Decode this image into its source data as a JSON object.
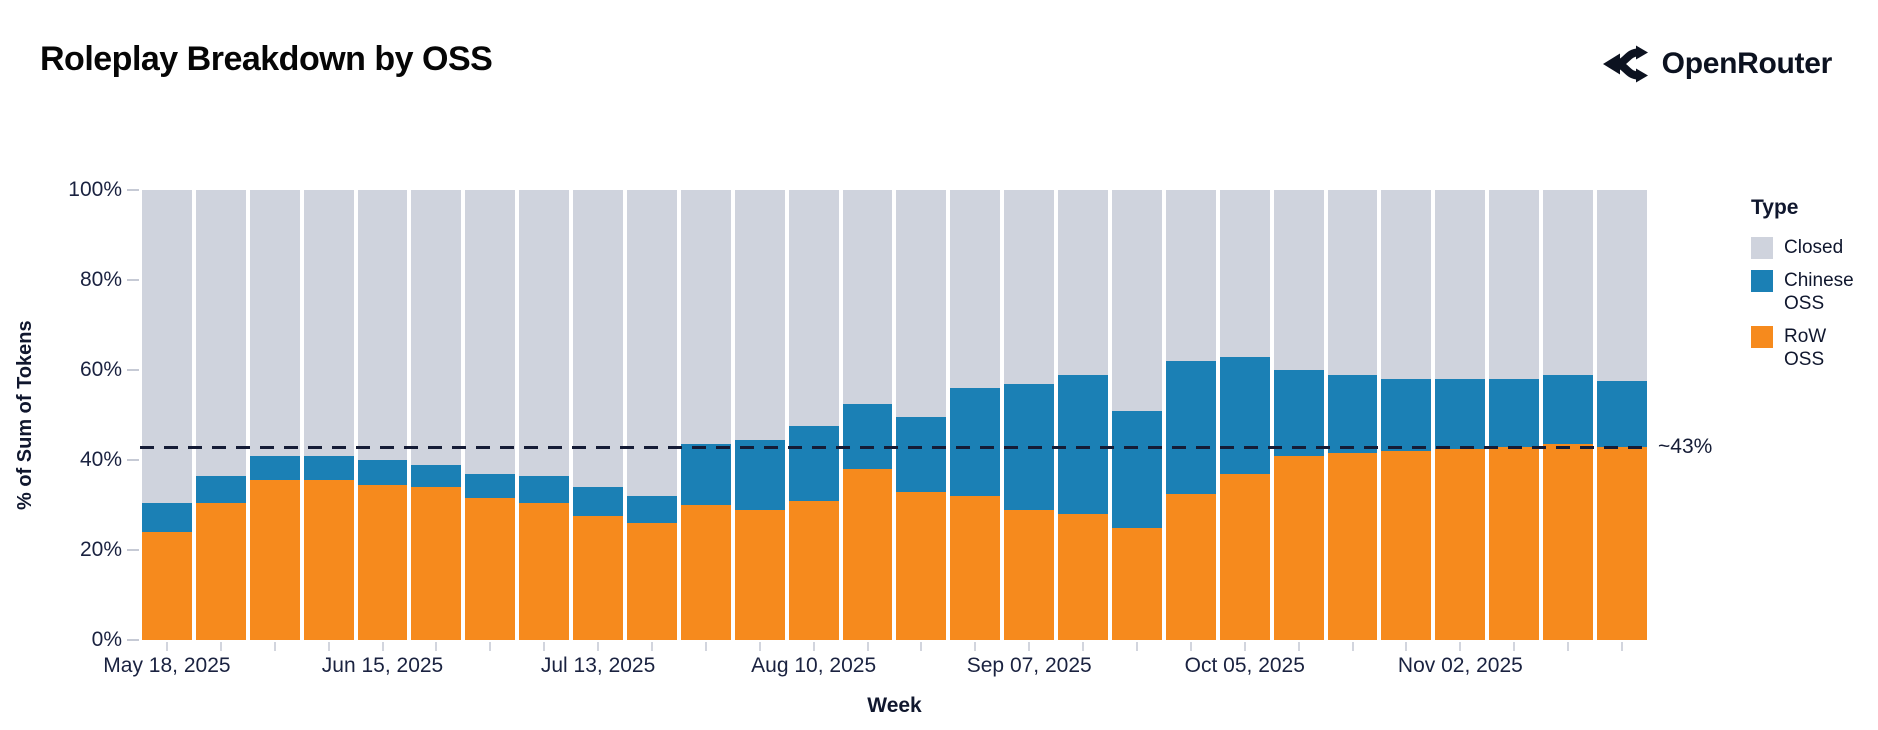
{
  "header": {
    "title": "Roleplay Breakdown by OSS",
    "brand": "OpenRouter"
  },
  "chart_data": {
    "type": "bar",
    "stacked": true,
    "title": "Roleplay Breakdown by OSS",
    "xlabel": "Week",
    "ylabel": "% of Sum of Tokens",
    "ylim": [
      0,
      100
    ],
    "grid": false,
    "y_ticks": [
      {
        "value": 0,
        "label": "0%"
      },
      {
        "value": 20,
        "label": "20%"
      },
      {
        "value": 40,
        "label": "40%"
      },
      {
        "value": 60,
        "label": "60%"
      },
      {
        "value": 80,
        "label": "80%"
      },
      {
        "value": 100,
        "label": "100%"
      }
    ],
    "categories": [
      "May 18, 2025",
      "May 25, 2025",
      "Jun 01, 2025",
      "Jun 08, 2025",
      "Jun 15, 2025",
      "Jun 22, 2025",
      "Jun 29, 2025",
      "Jul 06, 2025",
      "Jul 13, 2025",
      "Jul 20, 2025",
      "Jul 27, 2025",
      "Aug 03, 2025",
      "Aug 10, 2025",
      "Aug 17, 2025",
      "Aug 24, 2025",
      "Aug 31, 2025",
      "Sep 07, 2025",
      "Sep 14, 2025",
      "Sep 21, 2025",
      "Sep 28, 2025",
      "Oct 05, 2025",
      "Oct 12, 2025",
      "Oct 19, 2025",
      "Oct 26, 2025",
      "Nov 02, 2025",
      "Nov 09, 2025",
      "Nov 16, 2025",
      "Nov 23, 2025"
    ],
    "x_ticks": [
      {
        "index": 0,
        "label": "May 18, 2025"
      },
      {
        "index": 4,
        "label": "Jun 15, 2025"
      },
      {
        "index": 8,
        "label": "Jul 13, 2025"
      },
      {
        "index": 12,
        "label": "Aug 10, 2025"
      },
      {
        "index": 16,
        "label": "Sep 07, 2025"
      },
      {
        "index": 20,
        "label": "Oct 05, 2025"
      },
      {
        "index": 24,
        "label": "Nov 02, 2025"
      }
    ],
    "series": [
      {
        "name": "Closed",
        "color": "#cfd3dd",
        "values": [
          69.5,
          63.5,
          59,
          59,
          60,
          61,
          63,
          63.5,
          66,
          68,
          56.5,
          55.5,
          52.5,
          47.5,
          50.5,
          44,
          43,
          41,
          49,
          38,
          37,
          40,
          41,
          42,
          42,
          42,
          41,
          42.5
        ]
      },
      {
        "name": "Chinese OSS",
        "color": "#1b80b5",
        "values": [
          6.5,
          6,
          5.5,
          5.5,
          5.5,
          5,
          5.5,
          6,
          6.5,
          6,
          13.5,
          15.5,
          16.5,
          14.5,
          16.5,
          24,
          28,
          31,
          26,
          29.5,
          26,
          19,
          17.5,
          16,
          15.5,
          15,
          15.5,
          14.5
        ]
      },
      {
        "name": "RoW OSS",
        "color": "#f68a1d",
        "values": [
          24,
          30.5,
          35.5,
          35.5,
          34.5,
          34,
          31.5,
          30.5,
          27.5,
          26,
          30,
          29,
          31,
          38,
          33,
          32,
          29,
          28,
          25,
          32.5,
          37,
          41,
          41.5,
          42,
          42.5,
          43,
          43.5,
          43
        ]
      }
    ],
    "legend": {
      "title": "Type",
      "position": "right",
      "entries": [
        "Closed",
        "Chinese OSS",
        "RoW OSS"
      ]
    },
    "reference_line": {
      "value": 43,
      "label": "~43%",
      "style": "dashed",
      "color": "#151c36"
    }
  }
}
